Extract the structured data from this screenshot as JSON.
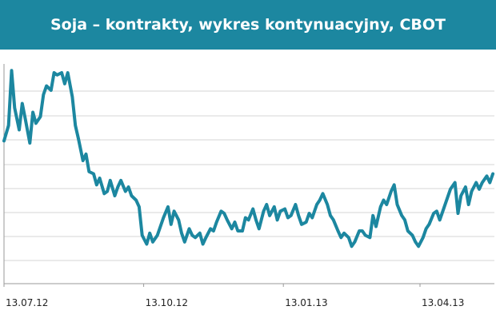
{
  "colors": {
    "header_bg": "#1c87a0",
    "line": "#1c87a0",
    "grid": "#d6d6d6",
    "axis": "#9a9a9a"
  },
  "chart_data": {
    "type": "line",
    "title": "Soja – kontrakty, wykres kontynuacyjny, CBOT",
    "xlabel": "",
    "ylabel": "",
    "grid": true,
    "legend": "none",
    "x_tick_labels": [
      "13.07.12",
      "13.10.12",
      "13.01.13",
      "13.04.13"
    ],
    "x_tick_dates": [
      "2012-07-13",
      "2012-10-13",
      "2013-01-13",
      "2013-04-13"
    ],
    "x_range": [
      "2012-07-13",
      "2013-06-01"
    ],
    "ylim": [
      0,
      100
    ],
    "series": [
      {
        "x": [
          "2012-07-13",
          "2012-07-16",
          "2012-07-18",
          "2012-07-20",
          "2012-07-23",
          "2012-07-25",
          "2012-07-27",
          "2012-07-30",
          "2012-08-01",
          "2012-08-03",
          "2012-08-06",
          "2012-08-08",
          "2012-08-10",
          "2012-08-13",
          "2012-08-15",
          "2012-08-17",
          "2012-08-20",
          "2012-08-22",
          "2012-08-24",
          "2012-08-27",
          "2012-08-29",
          "2012-08-31",
          "2012-09-03",
          "2012-09-05",
          "2012-09-07",
          "2012-09-10",
          "2012-09-12",
          "2012-09-14",
          "2012-09-17",
          "2012-09-19",
          "2012-09-21",
          "2012-09-24",
          "2012-09-26",
          "2012-09-28",
          "2012-10-01",
          "2012-10-03",
          "2012-10-05",
          "2012-10-08",
          "2012-10-10",
          "2012-10-12",
          "2012-10-15",
          "2012-10-17",
          "2012-10-19",
          "2012-10-22",
          "2012-10-24",
          "2012-10-26",
          "2012-10-29",
          "2012-10-31",
          "2012-11-02",
          "2012-11-05",
          "2012-11-07",
          "2012-11-09",
          "2012-11-12",
          "2012-11-14",
          "2012-11-16",
          "2012-11-19",
          "2012-11-21",
          "2012-11-23",
          "2012-11-26",
          "2012-11-28",
          "2012-11-30",
          "2012-12-03",
          "2012-12-05",
          "2012-12-07",
          "2012-12-10",
          "2012-12-12",
          "2012-12-14",
          "2012-12-17",
          "2012-12-19",
          "2012-12-21",
          "2012-12-24",
          "2012-12-26",
          "2012-12-28",
          "2012-12-31",
          "2013-01-02",
          "2013-01-04",
          "2013-01-07",
          "2013-01-09",
          "2013-01-11",
          "2013-01-14",
          "2013-01-16",
          "2013-01-18",
          "2013-01-21",
          "2013-01-23",
          "2013-01-25",
          "2013-01-28",
          "2013-01-30",
          "2013-02-01",
          "2013-02-04",
          "2013-02-06",
          "2013-02-08",
          "2013-02-11",
          "2013-02-13",
          "2013-02-15",
          "2013-02-18",
          "2013-02-20",
          "2013-02-22",
          "2013-02-25",
          "2013-02-27",
          "2013-03-01",
          "2013-03-04",
          "2013-03-06",
          "2013-03-08",
          "2013-03-11",
          "2013-03-13",
          "2013-03-15",
          "2013-03-18",
          "2013-03-20",
          "2013-03-22",
          "2013-03-25",
          "2013-03-27",
          "2013-03-29",
          "2013-04-01",
          "2013-04-03",
          "2013-04-05",
          "2013-04-08",
          "2013-04-10",
          "2013-04-12",
          "2013-04-15",
          "2013-04-17",
          "2013-04-19",
          "2013-04-22",
          "2013-04-24",
          "2013-04-26",
          "2013-04-29",
          "2013-05-01",
          "2013-05-03",
          "2013-05-06",
          "2013-05-08",
          "2013-05-10",
          "2013-05-13",
          "2013-05-15",
          "2013-05-17",
          "2013-05-20",
          "2013-05-22",
          "2013-05-24",
          "2013-05-27",
          "2013-05-29",
          "2013-05-31"
        ],
        "y": [
          65,
          72,
          97,
          80,
          70,
          82,
          75,
          64,
          78,
          73,
          76,
          86,
          90,
          88,
          96,
          95,
          96,
          91,
          96,
          85,
          72,
          66,
          56,
          59,
          51,
          50,
          45,
          48,
          41,
          42,
          47,
          40,
          44,
          47,
          42,
          44,
          40,
          38,
          35,
          22,
          18,
          23,
          19,
          22,
          26,
          30,
          35,
          27,
          33,
          29,
          23,
          19,
          25,
          22,
          21,
          23,
          18,
          21,
          25,
          24,
          28,
          33,
          32,
          29,
          25,
          28,
          24,
          24,
          30,
          29,
          34,
          29,
          25,
          33,
          36,
          31,
          35,
          29,
          33,
          34,
          30,
          31,
          36,
          31,
          27,
          28,
          32,
          30,
          36,
          38,
          41,
          36,
          31,
          29,
          24,
          21,
          23,
          21,
          17,
          19,
          24,
          24,
          22,
          21,
          31,
          26,
          35,
          38,
          36,
          42,
          45,
          36,
          31,
          29,
          24,
          22,
          19,
          17,
          21,
          25,
          27,
          32,
          33,
          29,
          35,
          39,
          43,
          46,
          32,
          40,
          44,
          36,
          42,
          46,
          43,
          46,
          49,
          46,
          50
        ]
      }
    ]
  }
}
